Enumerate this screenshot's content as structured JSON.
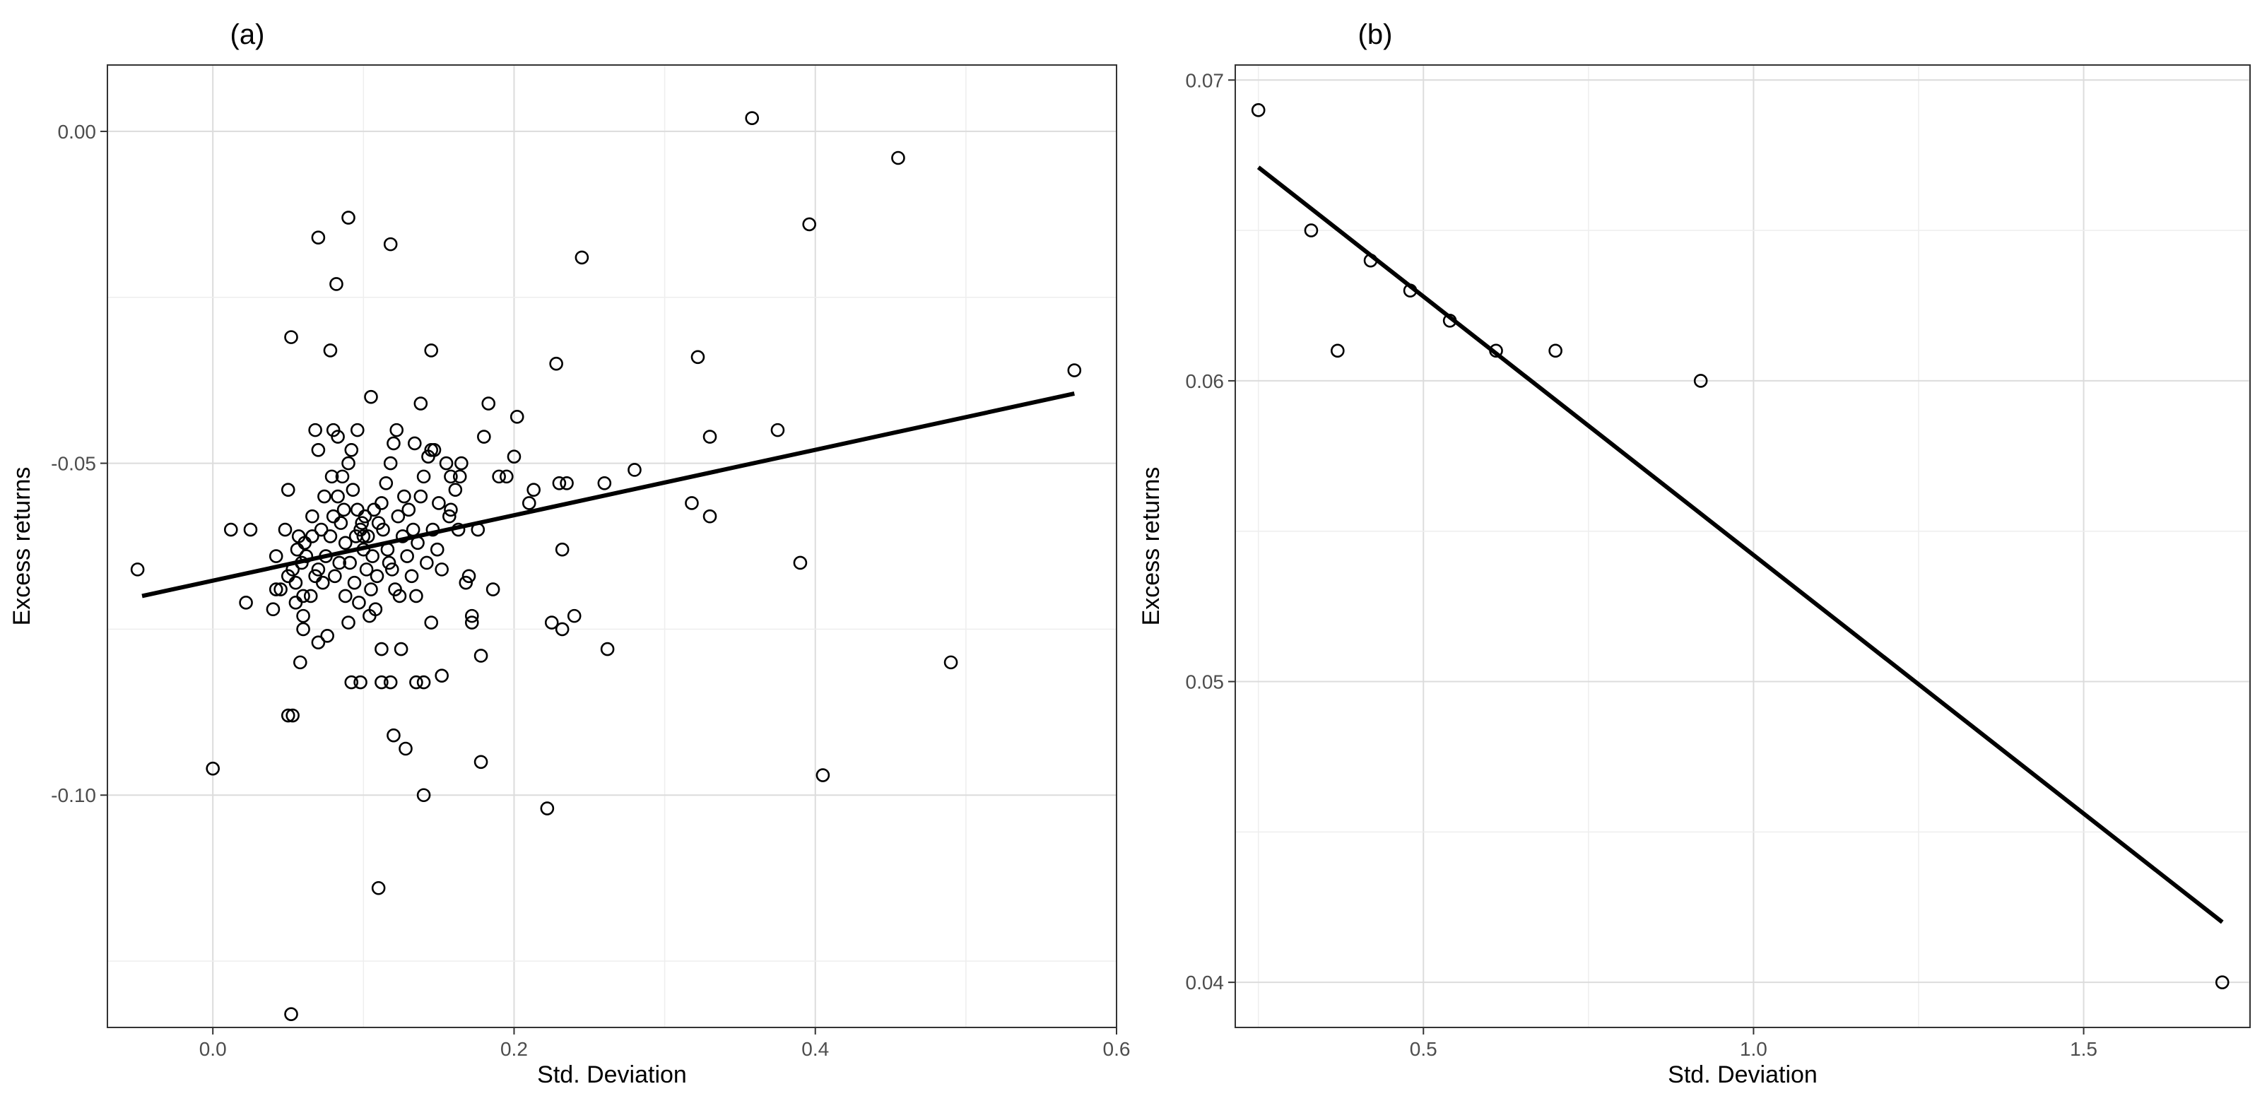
{
  "chart_data": [
    {
      "type": "scatter",
      "panel_label": "(a)",
      "xlabel": "Std. Deviation",
      "ylabel": "Excess returns",
      "xlim": [
        -0.07,
        0.6
      ],
      "ylim": [
        -0.135,
        0.01
      ],
      "x_ticks": [
        0.0,
        0.2,
        0.4,
        0.6
      ],
      "x_tick_labels": [
        "0.0",
        "0.2",
        "0.4",
        "0.6"
      ],
      "y_ticks": [
        0.0,
        -0.05,
        -0.1
      ],
      "y_tick_labels": [
        "0.00",
        "-0.05",
        "-0.10"
      ],
      "grid": true,
      "fit_line": {
        "x": [
          -0.047,
          0.572
        ],
        "y": [
          -0.07,
          -0.0395
        ]
      },
      "points": [
        [
          -0.05,
          -0.066
        ],
        [
          0.0,
          -0.096
        ],
        [
          0.012,
          -0.06
        ],
        [
          0.025,
          -0.06
        ],
        [
          0.022,
          -0.071
        ],
        [
          0.052,
          -0.031
        ],
        [
          0.05,
          -0.054
        ],
        [
          0.07,
          -0.016
        ],
        [
          0.078,
          -0.033
        ],
        [
          0.082,
          -0.023
        ],
        [
          0.09,
          -0.013
        ],
        [
          0.118,
          -0.017
        ],
        [
          0.105,
          -0.04
        ],
        [
          0.145,
          -0.033
        ],
        [
          0.138,
          -0.041
        ],
        [
          0.122,
          -0.045
        ],
        [
          0.092,
          -0.048
        ],
        [
          0.083,
          -0.046
        ],
        [
          0.07,
          -0.048
        ],
        [
          0.066,
          -0.058
        ],
        [
          0.061,
          -0.062
        ],
        [
          0.059,
          -0.065
        ],
        [
          0.055,
          -0.068
        ],
        [
          0.045,
          -0.069
        ],
        [
          0.042,
          -0.064
        ],
        [
          0.048,
          -0.06
        ],
        [
          0.053,
          -0.066
        ],
        [
          0.055,
          -0.071
        ],
        [
          0.06,
          -0.073
        ],
        [
          0.065,
          -0.07
        ],
        [
          0.07,
          -0.066
        ],
        [
          0.075,
          -0.064
        ],
        [
          0.078,
          -0.061
        ],
        [
          0.08,
          -0.058
        ],
        [
          0.083,
          -0.055
        ],
        [
          0.086,
          -0.052
        ],
        [
          0.09,
          -0.05
        ],
        [
          0.093,
          -0.054
        ],
        [
          0.096,
          -0.057
        ],
        [
          0.098,
          -0.06
        ],
        [
          0.1,
          -0.063
        ],
        [
          0.102,
          -0.066
        ],
        [
          0.105,
          -0.069
        ],
        [
          0.108,
          -0.072
        ],
        [
          0.11,
          -0.059
        ],
        [
          0.112,
          -0.056
        ],
        [
          0.115,
          -0.053
        ],
        [
          0.118,
          -0.05
        ],
        [
          0.12,
          -0.047
        ],
        [
          0.123,
          -0.058
        ],
        [
          0.126,
          -0.061
        ],
        [
          0.129,
          -0.064
        ],
        [
          0.132,
          -0.067
        ],
        [
          0.135,
          -0.07
        ],
        [
          0.138,
          -0.055
        ],
        [
          0.14,
          -0.052
        ],
        [
          0.143,
          -0.049
        ],
        [
          0.146,
          -0.06
        ],
        [
          0.149,
          -0.063
        ],
        [
          0.152,
          -0.066
        ],
        [
          0.155,
          -0.05
        ],
        [
          0.158,
          -0.057
        ],
        [
          0.161,
          -0.054
        ],
        [
          0.164,
          -0.052
        ],
        [
          0.168,
          -0.068
        ],
        [
          0.172,
          -0.073
        ],
        [
          0.176,
          -0.06
        ],
        [
          0.18,
          -0.046
        ],
        [
          0.183,
          -0.041
        ],
        [
          0.186,
          -0.069
        ],
        [
          0.19,
          -0.052
        ],
        [
          0.195,
          -0.052
        ],
        [
          0.2,
          -0.049
        ],
        [
          0.202,
          -0.043
        ],
        [
          0.21,
          -0.056
        ],
        [
          0.213,
          -0.054
        ],
        [
          0.228,
          -0.035
        ],
        [
          0.23,
          -0.053
        ],
        [
          0.235,
          -0.053
        ],
        [
          0.232,
          -0.063
        ],
        [
          0.245,
          -0.019
        ],
        [
          0.225,
          -0.074
        ],
        [
          0.232,
          -0.075
        ],
        [
          0.24,
          -0.073
        ],
        [
          0.26,
          -0.053
        ],
        [
          0.262,
          -0.078
        ],
        [
          0.28,
          -0.051
        ],
        [
          0.318,
          -0.056
        ],
        [
          0.322,
          -0.034
        ],
        [
          0.33,
          -0.046
        ],
        [
          0.33,
          -0.058
        ],
        [
          0.358,
          0.002
        ],
        [
          0.375,
          -0.045
        ],
        [
          0.39,
          -0.065
        ],
        [
          0.396,
          -0.014
        ],
        [
          0.405,
          -0.097
        ],
        [
          0.455,
          -0.004
        ],
        [
          0.49,
          -0.08
        ],
        [
          0.572,
          -0.036
        ],
        [
          0.222,
          -0.102
        ],
        [
          0.178,
          -0.095
        ],
        [
          0.14,
          -0.1
        ],
        [
          0.11,
          -0.114
        ],
        [
          0.052,
          -0.133
        ],
        [
          0.05,
          -0.088
        ],
        [
          0.053,
          -0.088
        ],
        [
          0.12,
          -0.091
        ],
        [
          0.128,
          -0.093
        ],
        [
          0.092,
          -0.083
        ],
        [
          0.098,
          -0.083
        ],
        [
          0.112,
          -0.083
        ],
        [
          0.118,
          -0.083
        ],
        [
          0.135,
          -0.083
        ],
        [
          0.14,
          -0.083
        ],
        [
          0.152,
          -0.082
        ],
        [
          0.178,
          -0.079
        ],
        [
          0.058,
          -0.08
        ],
        [
          0.07,
          -0.077
        ],
        [
          0.076,
          -0.076
        ],
        [
          0.112,
          -0.078
        ],
        [
          0.125,
          -0.078
        ],
        [
          0.09,
          -0.074
        ],
        [
          0.104,
          -0.073
        ],
        [
          0.145,
          -0.074
        ],
        [
          0.172,
          -0.074
        ],
        [
          0.06,
          -0.075
        ],
        [
          0.04,
          -0.072
        ],
        [
          0.042,
          -0.069
        ],
        [
          0.05,
          -0.067
        ],
        [
          0.056,
          -0.063
        ],
        [
          0.066,
          -0.061
        ],
        [
          0.072,
          -0.06
        ],
        [
          0.074,
          -0.055
        ],
        [
          0.079,
          -0.052
        ],
        [
          0.085,
          -0.059
        ],
        [
          0.088,
          -0.062
        ],
        [
          0.091,
          -0.065
        ],
        [
          0.094,
          -0.068
        ],
        [
          0.097,
          -0.071
        ],
        [
          0.101,
          -0.058
        ],
        [
          0.103,
          -0.061
        ],
        [
          0.106,
          -0.064
        ],
        [
          0.109,
          -0.067
        ],
        [
          0.113,
          -0.06
        ],
        [
          0.116,
          -0.063
        ],
        [
          0.119,
          -0.066
        ],
        [
          0.121,
          -0.069
        ],
        [
          0.124,
          -0.07
        ],
        [
          0.127,
          -0.055
        ],
        [
          0.13,
          -0.057
        ],
        [
          0.133,
          -0.06
        ],
        [
          0.136,
          -0.062
        ],
        [
          0.142,
          -0.065
        ],
        [
          0.147,
          -0.048
        ],
        [
          0.15,
          -0.056
        ],
        [
          0.157,
          -0.058
        ],
        [
          0.165,
          -0.05
        ],
        [
          0.17,
          -0.067
        ],
        [
          0.081,
          -0.067
        ],
        [
          0.084,
          -0.065
        ],
        [
          0.087,
          -0.057
        ],
        [
          0.095,
          -0.061
        ],
        [
          0.099,
          -0.059
        ],
        [
          0.107,
          -0.057
        ],
        [
          0.068,
          -0.067
        ],
        [
          0.073,
          -0.068
        ],
        [
          0.062,
          -0.064
        ],
        [
          0.057,
          -0.061
        ],
        [
          0.068,
          -0.045
        ],
        [
          0.08,
          -0.045
        ],
        [
          0.096,
          -0.045
        ],
        [
          0.134,
          -0.047
        ],
        [
          0.145,
          -0.048
        ],
        [
          0.06,
          -0.07
        ],
        [
          0.088,
          -0.07
        ],
        [
          0.1,
          -0.061
        ],
        [
          0.117,
          -0.065
        ],
        [
          0.158,
          -0.052
        ],
        [
          0.163,
          -0.06
        ]
      ]
    },
    {
      "type": "scatter",
      "panel_label": "(b)",
      "xlabel": "Std. Deviation",
      "ylabel": "Excess returns",
      "xlim": [
        0.215,
        1.752
      ],
      "ylim": [
        0.0385,
        0.0705
      ],
      "x_ticks": [
        0.5,
        1.0,
        1.5
      ],
      "x_tick_labels": [
        "0.5",
        "1.0",
        "1.5"
      ],
      "y_ticks": [
        0.04,
        0.05,
        0.06,
        0.07
      ],
      "y_tick_labels": [
        "0.04",
        "0.05",
        "0.06",
        "0.07"
      ],
      "grid": true,
      "fit_line": {
        "x": [
          0.25,
          1.71
        ],
        "y": [
          0.0671,
          0.042
        ]
      },
      "points": [
        [
          0.25,
          0.069
        ],
        [
          0.33,
          0.065
        ],
        [
          0.37,
          0.061
        ],
        [
          0.42,
          0.064
        ],
        [
          0.48,
          0.063
        ],
        [
          0.54,
          0.062
        ],
        [
          0.61,
          0.061
        ],
        [
          0.7,
          0.061
        ],
        [
          0.92,
          0.06
        ],
        [
          1.71,
          0.04
        ]
      ]
    }
  ]
}
